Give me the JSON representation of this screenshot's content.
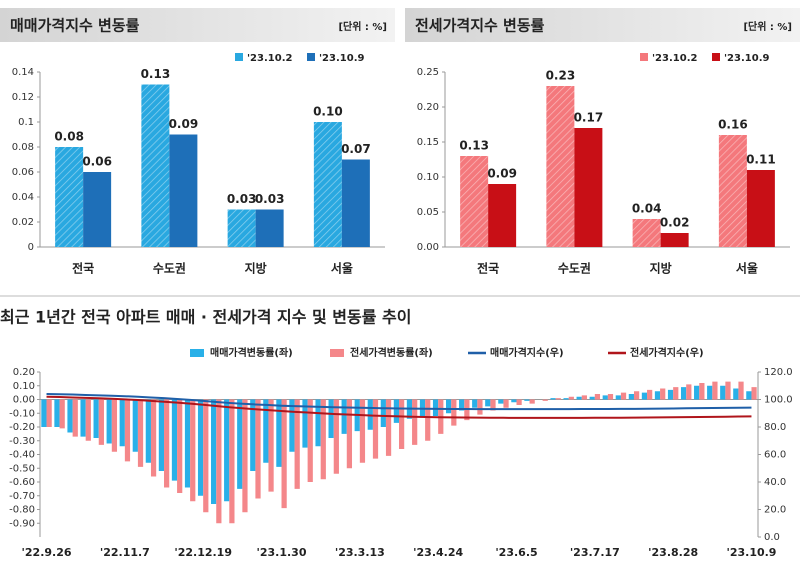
{
  "chart_data": [
    {
      "type": "bar",
      "title": "매매가격지수 변동률",
      "unit_label": "[단위 : %]",
      "categories": [
        "전국",
        "수도권",
        "지방",
        "서울"
      ],
      "series": [
        {
          "name": "'23.10.2",
          "color": "#29a8e0",
          "pattern": "hatch",
          "values": [
            0.08,
            0.13,
            0.03,
            0.1
          ],
          "value_labels": [
            "0.08",
            "0.13",
            "0.03",
            "0.10"
          ]
        },
        {
          "name": "'23.10.9",
          "color": "#1e6fb8",
          "values": [
            0.06,
            0.09,
            0.03,
            0.07
          ]
        }
      ],
      "ylim": [
        0,
        0.14
      ],
      "yticks": [
        0,
        0.02,
        0.04,
        0.06,
        0.08,
        0.1,
        0.12,
        0.14
      ],
      "legend": "top-right",
      "data_labels": true
    },
    {
      "type": "bar",
      "title": "전세가격지수 변동률",
      "unit_label": "[단위 : %]",
      "categories": [
        "전국",
        "수도권",
        "지방",
        "서울"
      ],
      "series": [
        {
          "name": "'23.10.2",
          "color": "#f4787c",
          "pattern": "hatch",
          "values": [
            0.13,
            0.23,
            0.04,
            0.16
          ]
        },
        {
          "name": "'23.10.9",
          "color": "#c80f16",
          "values": [
            0.09,
            0.17,
            0.02,
            0.11
          ]
        }
      ],
      "ylim": [
        0,
        0.25
      ],
      "yticks": [
        {
          "value": 0,
          "label": "0.00"
        },
        {
          "value": 0.05,
          "label": "0.05"
        },
        {
          "value": 0.1,
          "label": "0.10"
        },
        {
          "value": 0.15,
          "label": "0.15"
        },
        {
          "value": 0.2,
          "label": "0.20"
        },
        {
          "value": 0.25,
          "label": "0.25"
        }
      ],
      "legend": "top-right",
      "data_labels": true
    },
    {
      "type": "combo",
      "title": "최근 1년간 전국 아파트 매매 · 전세가격 지수 및 변동률 추이",
      "categories": [
        "'22.9.26",
        null,
        null,
        null,
        null,
        null,
        "'22.11.7",
        null,
        null,
        null,
        null,
        null,
        "'22.12.19",
        null,
        null,
        null,
        null,
        null,
        "'23.1.30",
        null,
        null,
        null,
        null,
        null,
        "'23.3.13",
        null,
        null,
        null,
        null,
        null,
        "'23.4.24",
        null,
        null,
        null,
        null,
        null,
        "'23.6.5",
        null,
        null,
        null,
        null,
        null,
        "'23.7.17",
        null,
        null,
        null,
        null,
        null,
        "'23.8.28",
        null,
        null,
        null,
        null,
        null,
        "'23.10.9"
      ],
      "series": [
        {
          "name": "매매가격변동률(좌)",
          "type": "bar",
          "color": "#29b0e8",
          "values": [
            -0.2,
            -0.2,
            -0.24,
            -0.27,
            -0.28,
            -0.32,
            -0.34,
            -0.38,
            -0.46,
            -0.52,
            -0.59,
            -0.64,
            -0.7,
            -0.76,
            -0.74,
            -0.65,
            -0.52,
            -0.46,
            -0.49,
            -0.38,
            -0.35,
            -0.34,
            -0.28,
            -0.25,
            -0.23,
            -0.22,
            -0.2,
            -0.17,
            -0.14,
            -0.13,
            -0.12,
            -0.1,
            -0.08,
            -0.06,
            -0.05,
            -0.03,
            -0.02,
            -0.01,
            0.0,
            0.01,
            0.01,
            0.02,
            0.02,
            0.03,
            0.03,
            0.04,
            0.05,
            0.06,
            0.07,
            0.09,
            0.1,
            0.1,
            0.1,
            0.08,
            0.06
          ]
        },
        {
          "name": "전세가격변동률(좌)",
          "type": "bar",
          "color": "#f4878a",
          "values": [
            -0.2,
            -0.21,
            -0.27,
            -0.3,
            -0.33,
            -0.38,
            -0.45,
            -0.49,
            -0.56,
            -0.64,
            -0.68,
            -0.74,
            -0.82,
            -0.9,
            -0.9,
            -0.82,
            -0.72,
            -0.67,
            -0.79,
            -0.65,
            -0.6,
            -0.58,
            -0.54,
            -0.5,
            -0.46,
            -0.43,
            -0.41,
            -0.36,
            -0.33,
            -0.3,
            -0.25,
            -0.19,
            -0.15,
            -0.11,
            -0.08,
            -0.06,
            -0.04,
            -0.03,
            -0.01,
            0.01,
            0.02,
            0.03,
            0.04,
            0.04,
            0.05,
            0.06,
            0.07,
            0.08,
            0.09,
            0.11,
            0.12,
            0.13,
            0.13,
            0.13,
            0.09
          ]
        },
        {
          "name": "매매가격지수(우)",
          "type": "line",
          "axis": "y2",
          "color": "#1f5fa8",
          "values": [
            104.0,
            103.8,
            103.6,
            103.3,
            103.0,
            102.7,
            102.4,
            102.0,
            101.5,
            101.0,
            100.4,
            99.7,
            99.0,
            98.2,
            97.5,
            96.9,
            96.4,
            96.0,
            95.5,
            95.2,
            94.9,
            94.6,
            94.4,
            94.2,
            94.0,
            93.8,
            93.6,
            93.5,
            93.4,
            93.3,
            93.2,
            93.1,
            93.1,
            93.0,
            93.0,
            93.0,
            93.0,
            93.0,
            93.0,
            93.0,
            93.0,
            93.1,
            93.1,
            93.1,
            93.2,
            93.2,
            93.3,
            93.4,
            93.5,
            93.6,
            93.7,
            93.8,
            93.9,
            94.0,
            94.1
          ]
        },
        {
          "name": "전세가격지수(우)",
          "type": "line",
          "axis": "y2",
          "color": "#b0151b",
          "values": [
            102.0,
            101.8,
            101.5,
            101.2,
            100.9,
            100.5,
            100.1,
            99.6,
            99.0,
            98.4,
            97.7,
            97.0,
            96.2,
            95.3,
            94.4,
            93.6,
            92.9,
            92.3,
            91.6,
            91.0,
            90.5,
            90.0,
            89.5,
            89.1,
            88.7,
            88.3,
            88.0,
            87.7,
            87.5,
            87.3,
            87.1,
            87.0,
            86.9,
            86.8,
            86.7,
            86.7,
            86.6,
            86.6,
            86.6,
            86.6,
            86.6,
            86.6,
            86.7,
            86.7,
            86.7,
            86.8,
            86.9,
            87.0,
            87.1,
            87.2,
            87.3,
            87.4,
            87.5,
            87.6,
            87.7
          ]
        }
      ],
      "ylim": [
        -1.0,
        0.2
      ],
      "yticks": [
        {
          "value": -0.9,
          "label": "-0.90"
        },
        {
          "value": -0.8,
          "label": "-0.80"
        },
        {
          "value": -0.7,
          "label": "-0.70"
        },
        {
          "value": -0.6,
          "label": "-0.60"
        },
        {
          "value": -0.5,
          "label": "-0.50"
        },
        {
          "value": -0.4,
          "label": "-0.40"
        },
        {
          "value": -0.3,
          "label": "-0.30"
        },
        {
          "value": -0.2,
          "label": "-0.20"
        },
        {
          "value": -0.1,
          "label": "-0.10"
        },
        {
          "value": 0,
          "label": "0.00"
        },
        {
          "value": 0.1,
          "label": "0.10"
        },
        {
          "value": 0.2,
          "label": "0.20"
        }
      ],
      "y2lim": [
        0,
        120
      ],
      "y2ticks": [
        {
          "value": 0,
          "label": "0.0"
        },
        {
          "value": 20,
          "label": "20.0"
        },
        {
          "value": 40,
          "label": "40.0"
        },
        {
          "value": 60,
          "label": "60.0"
        },
        {
          "value": 80,
          "label": "80.0"
        },
        {
          "value": 100,
          "label": "100.0"
        },
        {
          "value": 120,
          "label": "120.0"
        }
      ],
      "legend": "top"
    }
  ]
}
